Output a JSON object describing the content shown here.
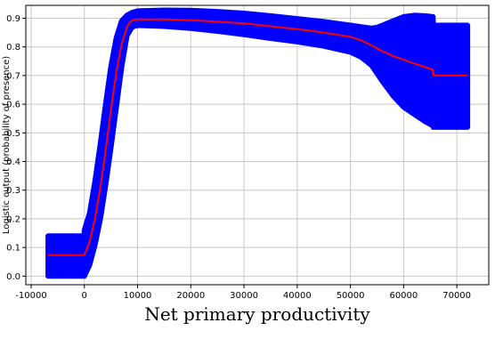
{
  "chart_data": {
    "type": "line",
    "title": "",
    "xlabel": "Net primary productivity",
    "ylabel": "Logistic output (probability of presence)",
    "xlim": [
      -11000,
      76000
    ],
    "ylim": [
      -0.03,
      0.945
    ],
    "grid": true,
    "x_ticks": [
      -10000,
      0,
      10000,
      20000,
      30000,
      40000,
      50000,
      60000,
      70000
    ],
    "x_tick_labels": [
      "-10000",
      "0",
      "10000",
      "20000",
      "30000",
      "40000",
      "50000",
      "60000",
      "70000"
    ],
    "y_ticks": [
      0.0,
      0.1,
      0.2,
      0.3,
      0.4,
      0.5,
      0.6,
      0.7,
      0.8,
      0.9
    ],
    "y_tick_labels": [
      "0.0",
      "0.1",
      "0.2",
      "0.3",
      "0.4",
      "0.5",
      "0.6",
      "0.7",
      "0.8",
      "0.9"
    ],
    "colors": {
      "mean_line": "#ff0000",
      "band": "#0000ff",
      "grid": "#c8c8c8",
      "frame": "#000000"
    },
    "series": [
      {
        "role": "mean",
        "x": [
          -6800,
          0,
          1000,
          2000,
          3000,
          4000,
          5000,
          6000,
          7000,
          8000,
          8500,
          9000,
          9500,
          10000,
          15000,
          20000,
          25000,
          30000,
          35000,
          40000,
          45000,
          50000,
          52000,
          54000,
          56000,
          58000,
          60000,
          62000,
          64000,
          65500,
          65600,
          66000,
          70000,
          72000
        ],
        "y": [
          0.073,
          0.073,
          0.12,
          0.2,
          0.31,
          0.44,
          0.58,
          0.71,
          0.81,
          0.87,
          0.885,
          0.892,
          0.895,
          0.896,
          0.896,
          0.893,
          0.888,
          0.882,
          0.872,
          0.862,
          0.85,
          0.835,
          0.823,
          0.805,
          0.785,
          0.768,
          0.755,
          0.742,
          0.73,
          0.72,
          0.7,
          0.7,
          0.7,
          0.7
        ]
      },
      {
        "role": "upper",
        "x": [
          -6800,
          0,
          0.5,
          1000,
          2000,
          3000,
          4000,
          5000,
          6000,
          7000,
          8000,
          9000,
          10000,
          15000,
          20000,
          25000,
          30000,
          35000,
          40000,
          45000,
          50000,
          52000,
          54000,
          55000,
          56000,
          58000,
          60000,
          62000,
          64000,
          65500,
          65600,
          72000
        ],
        "y": [
          0.14,
          0.14,
          0.16,
          0.22,
          0.33,
          0.46,
          0.6,
          0.73,
          0.83,
          0.89,
          0.91,
          0.92,
          0.925,
          0.928,
          0.927,
          0.923,
          0.917,
          0.908,
          0.898,
          0.888,
          0.875,
          0.87,
          0.865,
          0.868,
          0.875,
          0.89,
          0.905,
          0.91,
          0.908,
          0.905,
          0.875,
          0.875
        ]
      },
      {
        "role": "lower",
        "x": [
          -6800,
          0,
          1000,
          2000,
          3000,
          4000,
          5000,
          6000,
          7000,
          8000,
          9000,
          10000,
          15000,
          20000,
          25000,
          30000,
          35000,
          40000,
          45000,
          50000,
          52000,
          54000,
          56000,
          58000,
          60000,
          62000,
          64000,
          65500,
          65600,
          72000
        ],
        "y": [
          0.0,
          0.0,
          0.04,
          0.11,
          0.2,
          0.32,
          0.45,
          0.59,
          0.73,
          0.84,
          0.87,
          0.875,
          0.872,
          0.865,
          0.855,
          0.843,
          0.83,
          0.818,
          0.803,
          0.782,
          0.765,
          0.735,
          0.68,
          0.63,
          0.59,
          0.565,
          0.54,
          0.525,
          0.52,
          0.52
        ]
      }
    ]
  }
}
